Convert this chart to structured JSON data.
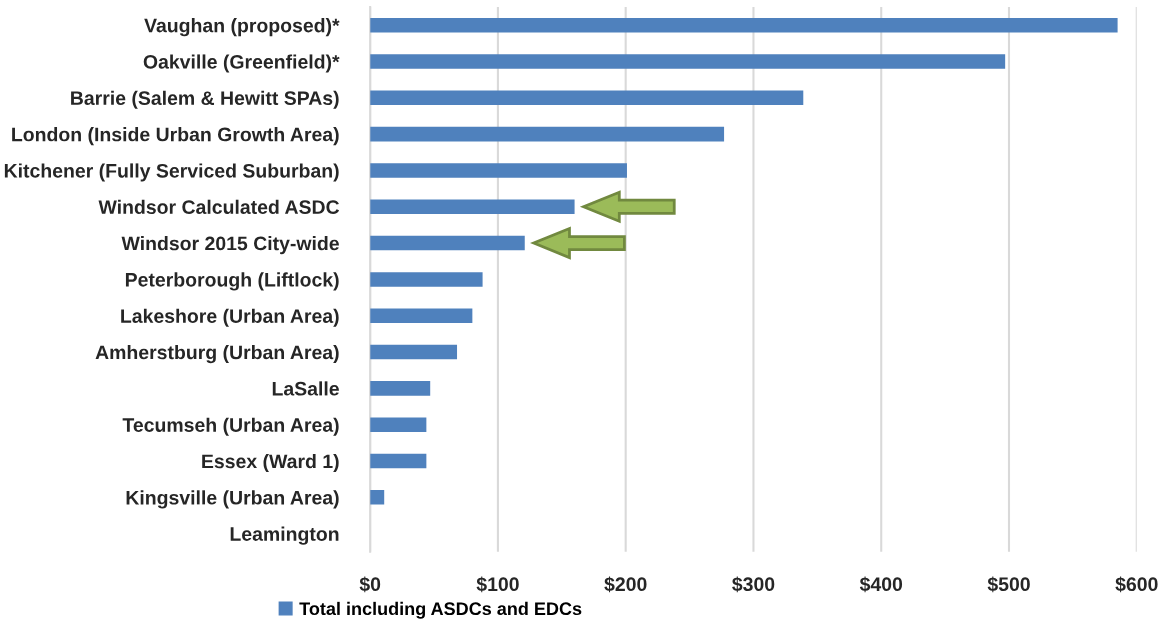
{
  "chart_data": {
    "type": "bar",
    "orientation": "horizontal",
    "categories": [
      "Vaughan (proposed)*",
      "Oakville (Greenfield)*",
      "Barrie (Salem & Hewitt SPAs)",
      "London (Inside Urban Growth Area)",
      "Kitchener (Fully Serviced Suburban)",
      "Windsor Calculated ASDC",
      "Windsor 2015 City-wide",
      "Peterborough (Liftlock)",
      "Lakeshore (Urban Area)",
      "Amherstburg (Urban Area)",
      "LaSalle",
      "Tecumseh (Urban Area)",
      "Essex (Ward 1)",
      "Kingsville (Urban Area)",
      "Leamington"
    ],
    "series": [
      {
        "name": "Total including ASDCs and EDCs",
        "color": "#4f81bd",
        "values": [
          585,
          497,
          339,
          277,
          201,
          160,
          121,
          88,
          80,
          68,
          47,
          44,
          44,
          11,
          0
        ]
      }
    ],
    "xlim": [
      0,
      600
    ],
    "xticks": [
      {
        "value": 0,
        "label": "$0"
      },
      {
        "value": 100,
        "label": "$100"
      },
      {
        "value": 200,
        "label": "$200"
      },
      {
        "value": 300,
        "label": "$300"
      },
      {
        "value": 400,
        "label": "$400"
      },
      {
        "value": 500,
        "label": "$500"
      },
      {
        "value": 600,
        "label": "$600"
      }
    ],
    "grid": "x",
    "legend": "bottom"
  }
}
